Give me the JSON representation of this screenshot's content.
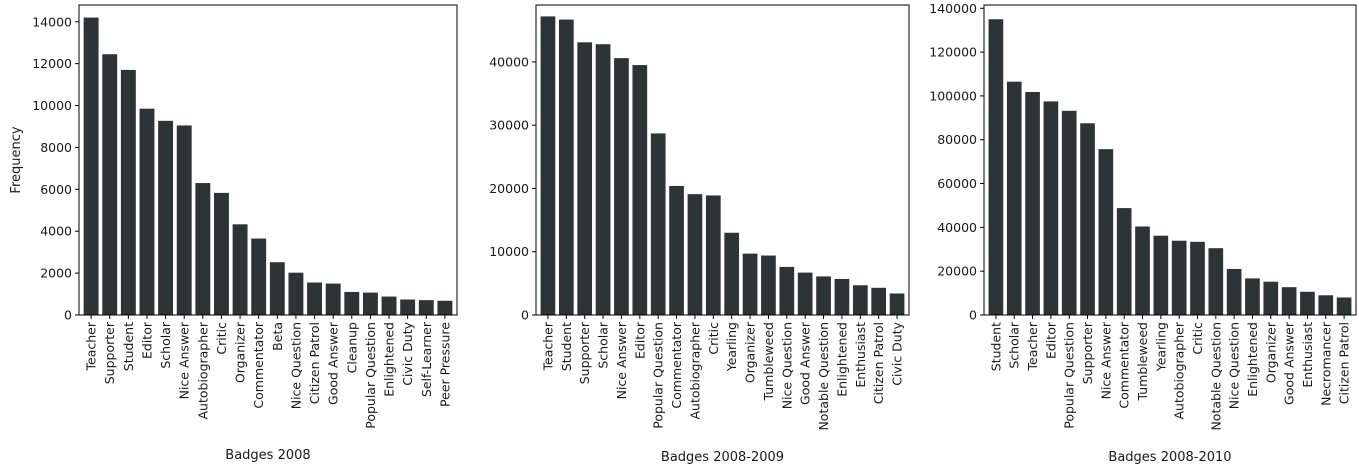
{
  "chart_data": [
    {
      "type": "bar",
      "xlabel": "Badges 2008",
      "ylabel": "Frequency",
      "ylim": [
        0,
        14800
      ],
      "yticks": [
        0,
        2000,
        4000,
        6000,
        8000,
        10000,
        12000,
        14000
      ],
      "grid": false,
      "bar_color": "#2d3436",
      "categories": [
        "Teacher",
        "Supporter",
        "Student",
        "Editor",
        "Scholar",
        "Nice Answer",
        "Autobiographer",
        "Critic",
        "Organizer",
        "Commentator",
        "Beta",
        "Nice Question",
        "Citizen Patrol",
        "Good Answer",
        "Cleanup",
        "Popular Question",
        "Enlightened",
        "Civic Duty",
        "Self-Learner",
        "Peer Pressure"
      ],
      "values": [
        14200,
        12450,
        11700,
        9850,
        9270,
        9050,
        6300,
        5830,
        4330,
        3650,
        2520,
        2020,
        1550,
        1500,
        1100,
        1070,
        880,
        740,
        710,
        680
      ]
    },
    {
      "type": "bar",
      "xlabel": "Badges 2008-2009",
      "ylabel": "",
      "ylim": [
        0,
        49000
      ],
      "yticks": [
        0,
        10000,
        20000,
        30000,
        40000
      ],
      "grid": false,
      "bar_color": "#2d3436",
      "categories": [
        "Teacher",
        "Student",
        "Supporter",
        "Scholar",
        "Nice Answer",
        "Editor",
        "Popular Question",
        "Commentator",
        "Autobiographer",
        "Critic",
        "Yearling",
        "Organizer",
        "Tumbleweed",
        "Nice Question",
        "Good Answer",
        "Notable Question",
        "Enlightened",
        "Enthusiast",
        "Citizen Patrol",
        "Civic Duty"
      ],
      "values": [
        47200,
        46700,
        43100,
        42800,
        40600,
        39500,
        28700,
        20400,
        19100,
        18900,
        13000,
        9700,
        9400,
        7600,
        6700,
        6100,
        5700,
        4700,
        4300,
        3400
      ]
    },
    {
      "type": "bar",
      "xlabel": "Badges 2008-2010",
      "ylabel": "",
      "ylim": [
        0,
        141500
      ],
      "yticks": [
        0,
        20000,
        40000,
        60000,
        80000,
        100000,
        120000,
        140000
      ],
      "grid": false,
      "bar_color": "#2d3436",
      "categories": [
        "Student",
        "Scholar",
        "Teacher",
        "Editor",
        "Popular Question",
        "Supporter",
        "Nice Answer",
        "Commentator",
        "Tumbleweed",
        "Yearling",
        "Autobiographer",
        "Critic",
        "Notable Question",
        "Nice Question",
        "Enlightened",
        "Organizer",
        "Good Answer",
        "Enthusiast",
        "Necromancer",
        "Citizen Patrol"
      ],
      "values": [
        135000,
        106500,
        101800,
        97500,
        93200,
        87500,
        75700,
        48800,
        40400,
        36200,
        33900,
        33400,
        30500,
        21000,
        16700,
        15200,
        12700,
        10600,
        9000,
        8000
      ]
    }
  ]
}
